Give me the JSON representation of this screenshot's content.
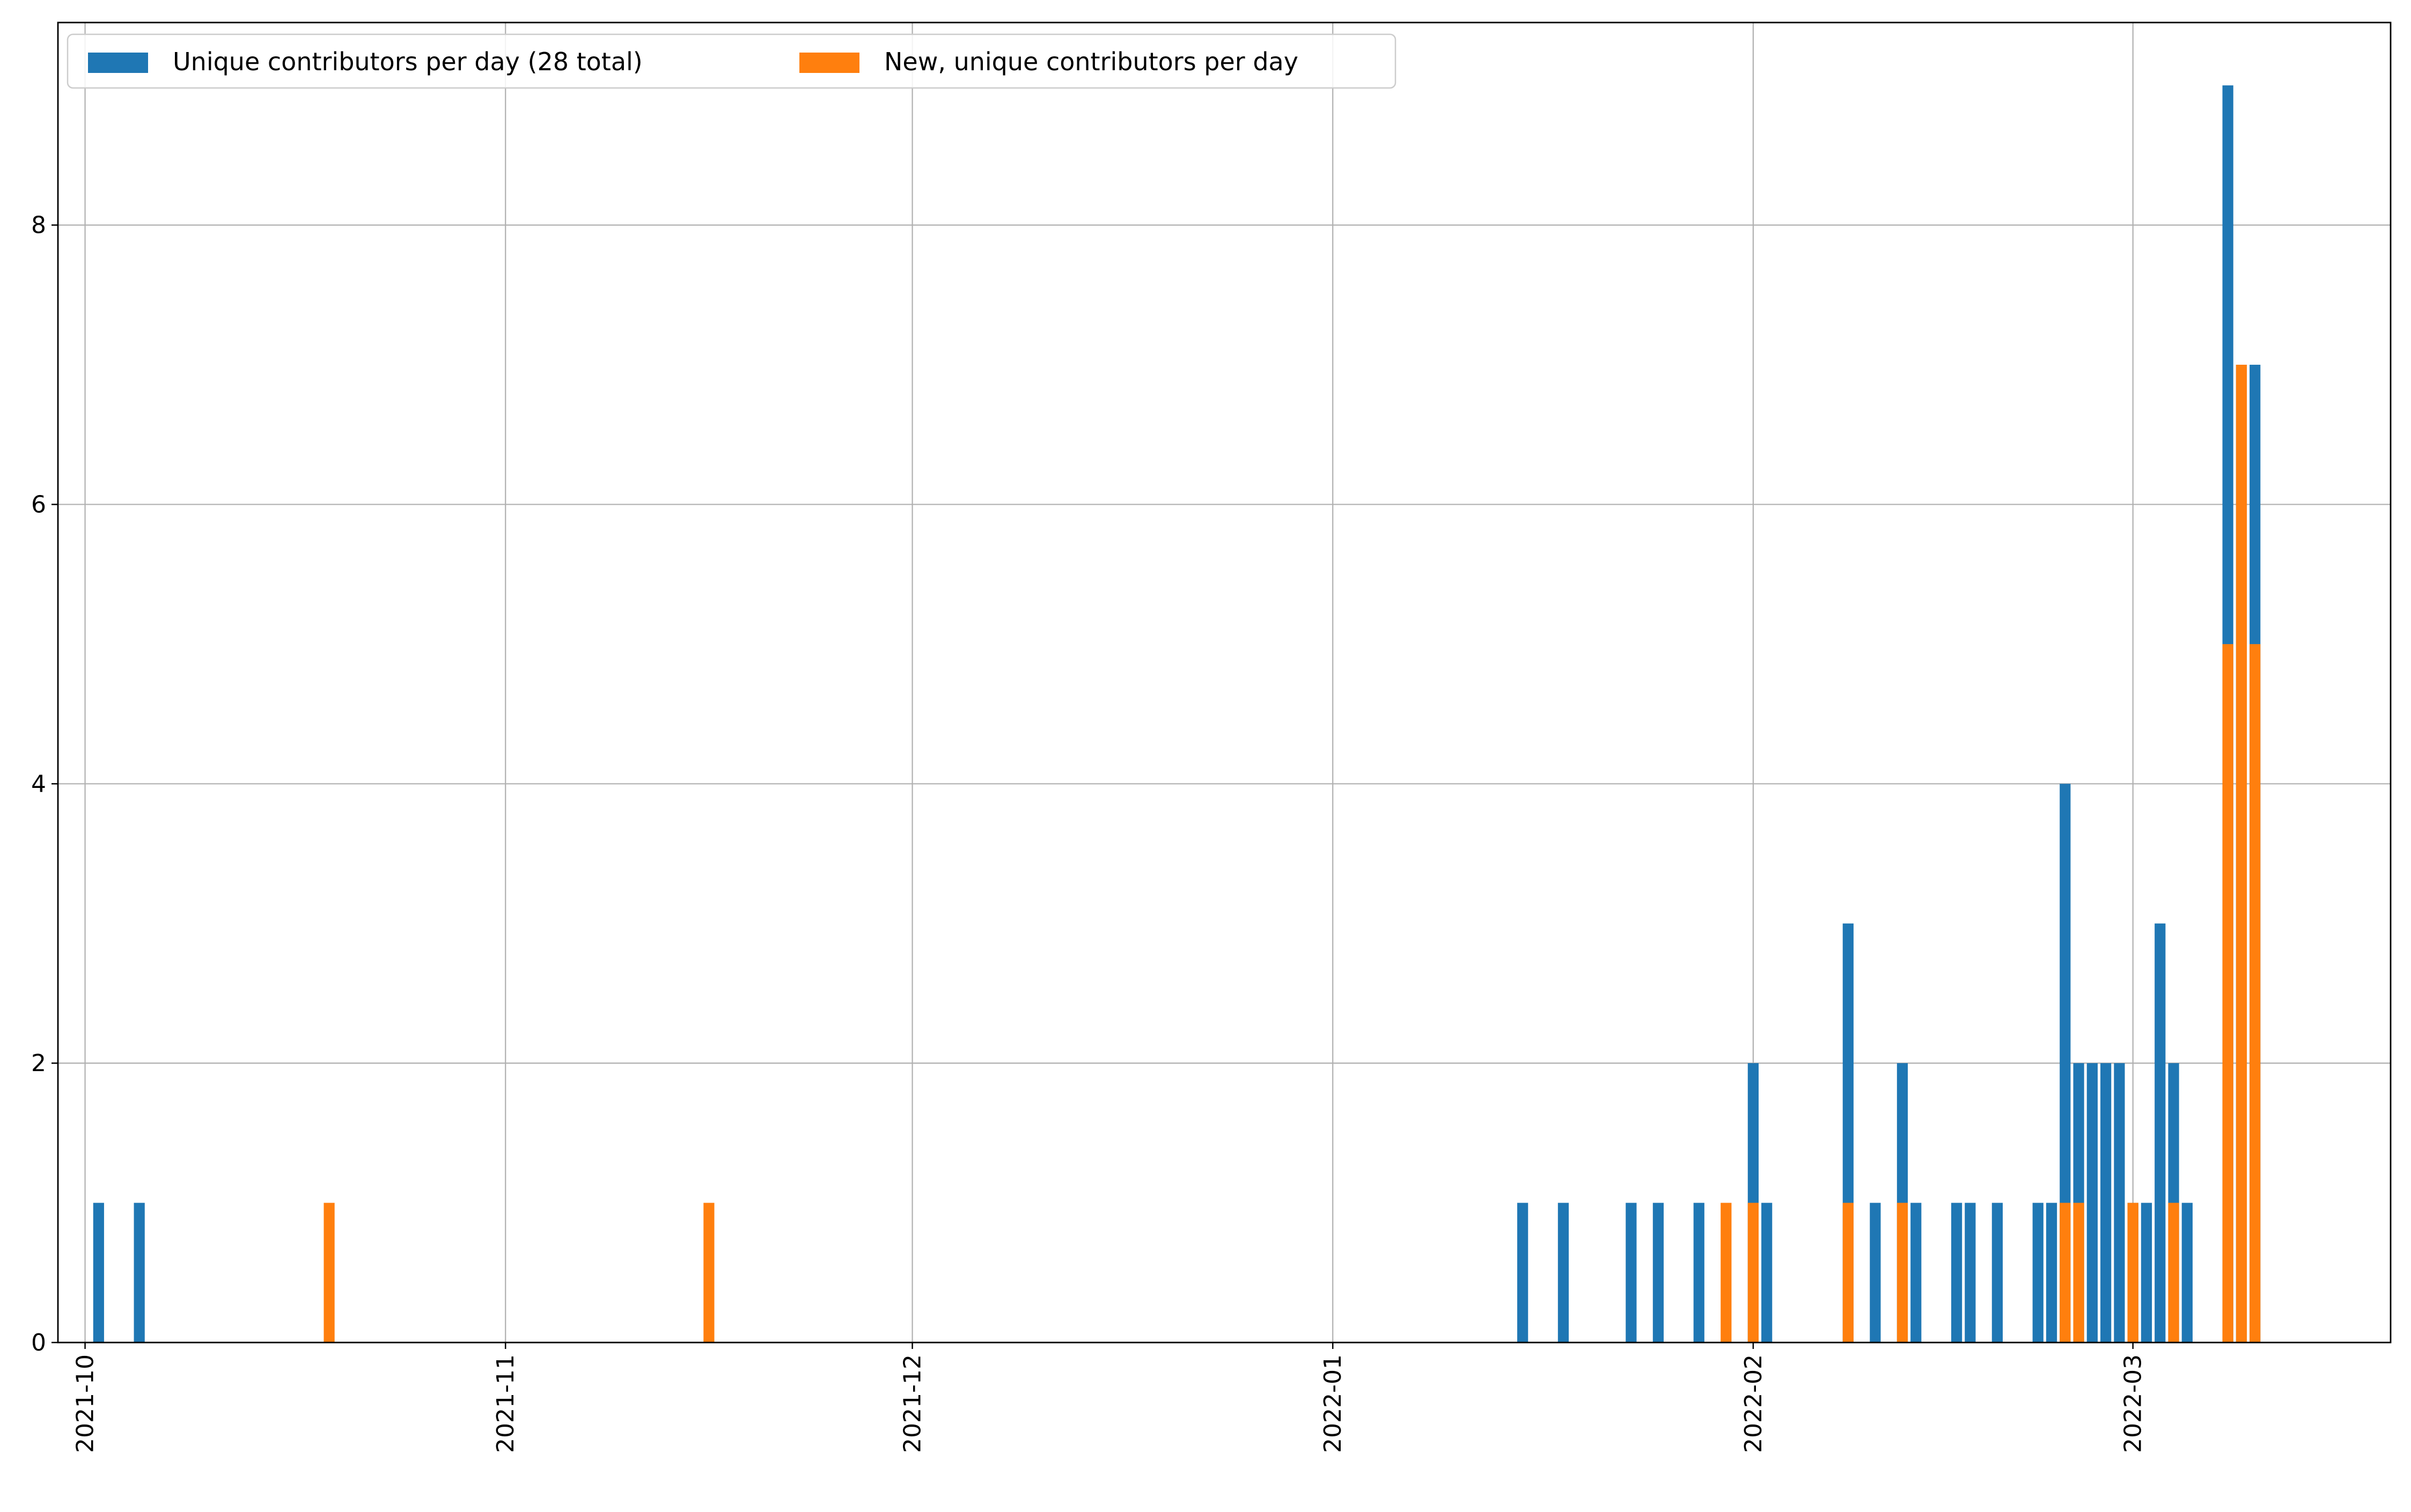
{
  "chart_data": {
    "type": "bar",
    "x_axis": {
      "type": "date",
      "range": [
        "2021-09-29",
        "2022-03-20"
      ],
      "tick_labels": [
        "2021-10",
        "2021-11",
        "2021-12",
        "2022-01",
        "2022-02",
        "2022-03"
      ],
      "tick_dates": [
        "2021-10-01",
        "2021-11-01",
        "2021-12-01",
        "2022-01-01",
        "2022-02-01",
        "2022-03-01"
      ],
      "tick_label_rotation": "vertical"
    },
    "y_axis": {
      "range": [
        0,
        9.45
      ],
      "ticks": [
        0,
        2,
        4,
        6,
        8
      ]
    },
    "grid": true,
    "legend": {
      "placement": "top-left",
      "columns": 2
    },
    "colors": {
      "series_0": "#1f77b4",
      "series_1": "#ff7f0e"
    },
    "series": [
      {
        "name": "Unique contributors per day (28 total)",
        "color": "#1f77b4",
        "points": [
          {
            "x": "2021-10-02",
            "y": 1
          },
          {
            "x": "2021-10-05",
            "y": 1
          },
          {
            "x": "2022-01-15",
            "y": 1
          },
          {
            "x": "2022-01-18",
            "y": 1
          },
          {
            "x": "2022-01-23",
            "y": 1
          },
          {
            "x": "2022-01-25",
            "y": 1
          },
          {
            "x": "2022-01-28",
            "y": 1
          },
          {
            "x": "2022-02-01",
            "y": 2
          },
          {
            "x": "2022-02-02",
            "y": 1
          },
          {
            "x": "2022-02-08",
            "y": 3
          },
          {
            "x": "2022-02-10",
            "y": 1
          },
          {
            "x": "2022-02-12",
            "y": 2
          },
          {
            "x": "2022-02-13",
            "y": 1
          },
          {
            "x": "2022-02-16",
            "y": 1
          },
          {
            "x": "2022-02-17",
            "y": 1
          },
          {
            "x": "2022-02-19",
            "y": 1
          },
          {
            "x": "2022-02-22",
            "y": 1
          },
          {
            "x": "2022-02-23",
            "y": 1
          },
          {
            "x": "2022-02-24",
            "y": 4
          },
          {
            "x": "2022-02-25",
            "y": 2
          },
          {
            "x": "2022-02-26",
            "y": 2
          },
          {
            "x": "2022-02-27",
            "y": 2
          },
          {
            "x": "2022-02-28",
            "y": 2
          },
          {
            "x": "2022-03-01",
            "y": 1
          },
          {
            "x": "2022-03-02",
            "y": 1
          },
          {
            "x": "2022-03-03",
            "y": 3
          },
          {
            "x": "2022-03-04",
            "y": 2
          },
          {
            "x": "2022-03-05",
            "y": 1
          },
          {
            "x": "2022-03-08",
            "y": 9
          },
          {
            "x": "2022-03-09",
            "y": 7
          },
          {
            "x": "2022-03-10",
            "y": 7
          }
        ]
      },
      {
        "name": "New, unique contributors per day",
        "color": "#ff7f0e",
        "points": [
          {
            "x": "2021-10-19",
            "y": 1
          },
          {
            "x": "2021-11-16",
            "y": 1
          },
          {
            "x": "2022-01-30",
            "y": 1
          },
          {
            "x": "2022-02-01",
            "y": 1
          },
          {
            "x": "2022-02-08",
            "y": 1
          },
          {
            "x": "2022-02-12",
            "y": 1
          },
          {
            "x": "2022-02-24",
            "y": 1
          },
          {
            "x": "2022-02-25",
            "y": 1
          },
          {
            "x": "2022-03-01",
            "y": 1
          },
          {
            "x": "2022-03-04",
            "y": 1
          },
          {
            "x": "2022-03-08",
            "y": 5
          },
          {
            "x": "2022-03-09",
            "y": 7
          },
          {
            "x": "2022-03-10",
            "y": 5
          }
        ]
      }
    ]
  }
}
